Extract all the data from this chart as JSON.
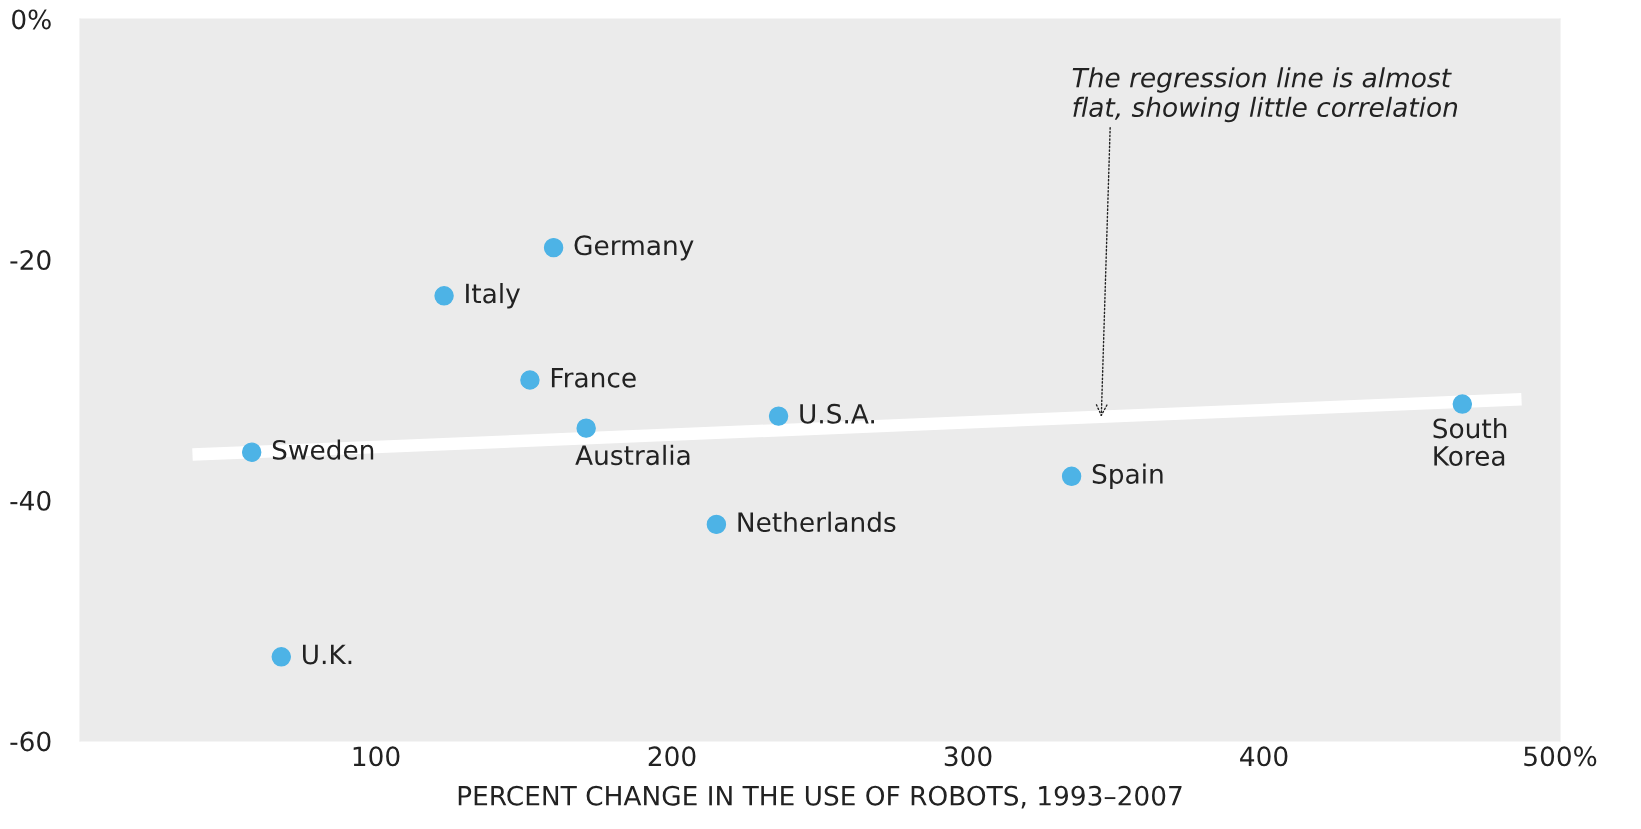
{
  "chart_data": {
    "type": "scatter",
    "xlabel": "PERCENT CHANGE IN THE USE OF ROBOTS, 1993–2007",
    "xlim": [
      0,
      500
    ],
    "ylim": [
      -60,
      0
    ],
    "xticks": [
      100,
      200,
      300,
      400,
      {
        "value": 500,
        "label": "500%"
      }
    ],
    "yticks": [
      {
        "value": 0,
        "label": "0%"
      },
      -20,
      -40,
      -60
    ],
    "grid": false,
    "legend": false,
    "marker": "circle",
    "series": [
      {
        "name": "Germany",
        "color": "#4db3e6",
        "x": [
          160
        ],
        "values": [
          -19
        ]
      },
      {
        "name": "Italy",
        "color": "#4db3e6",
        "x": [
          123
        ],
        "values": [
          -23
        ]
      },
      {
        "name": "France",
        "color": "#4db3e6",
        "x": [
          152
        ],
        "values": [
          -30
        ]
      },
      {
        "name": "Australia",
        "color": "#4db3e6",
        "x": [
          171
        ],
        "values": [
          -34
        ]
      },
      {
        "name": "Sweden",
        "color": "#4db3e6",
        "x": [
          58
        ],
        "values": [
          -36
        ]
      },
      {
        "name": "U.S.A.",
        "color": "#4db3e6",
        "x": [
          236
        ],
        "values": [
          -33
        ]
      },
      {
        "name": "Netherlands",
        "color": "#4db3e6",
        "x": [
          215
        ],
        "values": [
          -42
        ]
      },
      {
        "name": "Spain",
        "color": "#4db3e6",
        "x": [
          335
        ],
        "values": [
          -38
        ]
      },
      {
        "name": "South Korea",
        "color": "#4db3e6",
        "x": [
          467
        ],
        "values": [
          -32
        ]
      },
      {
        "name": "U.K.",
        "color": "#4db3e6",
        "x": [
          68
        ],
        "values": [
          -53
        ]
      },
      {
        "type": "line",
        "marker": "none",
        "color": "#ffffff",
        "x": [
          38,
          487
        ],
        "values": [
          -36.2,
          -31.6
        ]
      }
    ],
    "annotations": [
      {
        "text": "The regression line is almost flat, showing little correlation",
        "x": 345,
        "y": -33.3
      }
    ]
  }
}
